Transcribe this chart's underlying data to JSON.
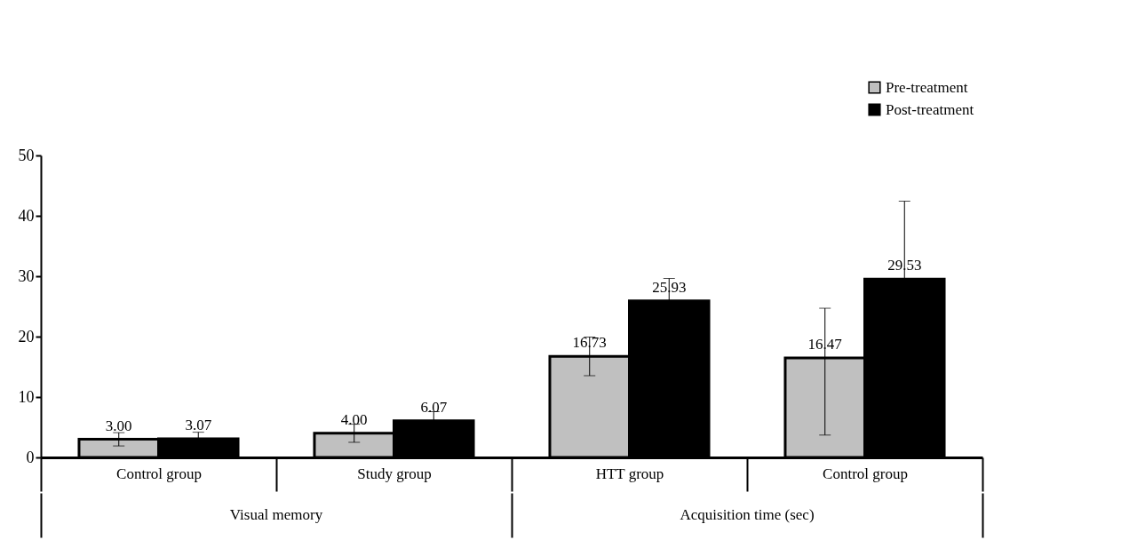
{
  "chart_data": {
    "type": "bar",
    "categories": [
      "Control group",
      "Study group",
      "HTT group",
      "Control group"
    ],
    "series": [
      {
        "name": "Pre-treatment",
        "color": "#c0c0c0",
        "values": [
          3.0,
          4.0,
          16.73,
          16.47
        ],
        "value_labels": [
          "3.00",
          "4.00",
          "16.73",
          "16.47"
        ],
        "errors": [
          1.1,
          1.5,
          3.2,
          [
            3.7,
            24.7
          ]
        ]
      },
      {
        "name": "Post-treatment",
        "color": "#000000",
        "values": [
          3.07,
          6.07,
          25.93,
          29.53
        ],
        "value_labels": [
          "3.07",
          "6.07",
          "25.93",
          "29.53"
        ],
        "errors": [
          1.1,
          1.5,
          3.7,
          12.9
        ]
      }
    ],
    "annotations": [
      "Visual memory",
      "Acquisition time (sec)"
    ],
    "ylim": [
      0,
      50
    ],
    "yticks": [
      0,
      10,
      20,
      30,
      40,
      50
    ],
    "grid": false,
    "legend": "top right"
  }
}
